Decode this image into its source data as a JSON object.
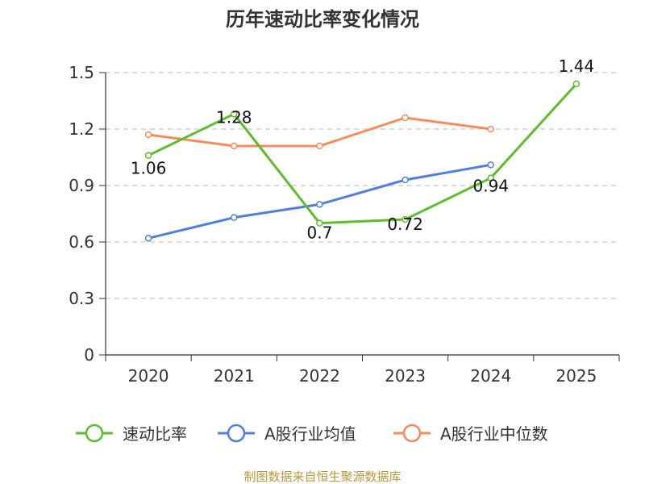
{
  "chart_data": {
    "type": "line",
    "title": "历年速动比率变化情况",
    "categories": [
      "2020",
      "2021",
      "2022",
      "2023",
      "2024",
      "2025"
    ],
    "ylim": [
      0,
      1.5
    ],
    "yticks": [
      0,
      0.3,
      0.6,
      0.9,
      1.2,
      1.5
    ],
    "ytick_labels": [
      "0",
      "0.3",
      "0.6",
      "0.9",
      "1.2",
      "1.5"
    ],
    "grid": true,
    "legend_position": "bottom",
    "series": [
      {
        "name": "速动比率",
        "color": "#5cbf2a",
        "values": [
          1.06,
          1.28,
          0.7,
          0.72,
          0.94,
          1.44
        ],
        "labels": [
          "1.06",
          "1.28",
          "0.7",
          "0.72",
          "0.94",
          "1.44"
        ],
        "show_labels": true
      },
      {
        "name": "A股行业均值",
        "color": "#4f80dd",
        "values": [
          0.62,
          0.73,
          0.8,
          0.93,
          1.01,
          null
        ],
        "show_labels": false
      },
      {
        "name": "A股行业中位数",
        "color": "#f58c5b",
        "values": [
          1.17,
          1.11,
          1.11,
          1.26,
          1.2,
          null
        ],
        "show_labels": false
      }
    ],
    "source": "制图数据来自恒生聚源数据库"
  }
}
